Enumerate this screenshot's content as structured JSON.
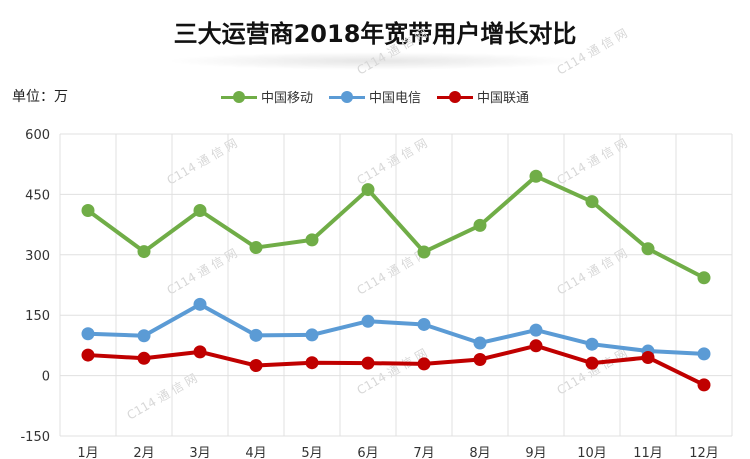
{
  "header": {
    "title": "三大运营商2018年宽带用户增长对比",
    "unit_label": "单位：万"
  },
  "watermark": "C114 通 信 网",
  "chart_data": {
    "type": "line",
    "title": "三大运营商2018年宽带用户增长对比",
    "ylabel": "单位：万",
    "xlabel": "",
    "categories": [
      "1月",
      "2月",
      "3月",
      "4月",
      "5月",
      "6月",
      "7月",
      "8月",
      "9月",
      "10月",
      "11月",
      "12月"
    ],
    "ylim": [
      -150,
      600
    ],
    "yticks": [
      -150,
      0,
      150,
      300,
      450,
      600
    ],
    "grid": true,
    "legend_position": "top-center",
    "series": [
      {
        "name": "中国移动",
        "color": "#70ad47",
        "values": [
          410,
          308,
          410,
          318,
          337,
          462,
          307,
          373,
          495,
          432,
          315,
          243
        ]
      },
      {
        "name": "中国电信",
        "color": "#5b9bd5",
        "values": [
          104,
          99,
          177,
          100,
          101,
          135,
          127,
          81,
          113,
          78,
          61,
          54
        ]
      },
      {
        "name": "中国联通",
        "color": "#c00000",
        "values": [
          51,
          43,
          59,
          25,
          32,
          31,
          29,
          40,
          74,
          31,
          45,
          -23
        ]
      }
    ]
  }
}
